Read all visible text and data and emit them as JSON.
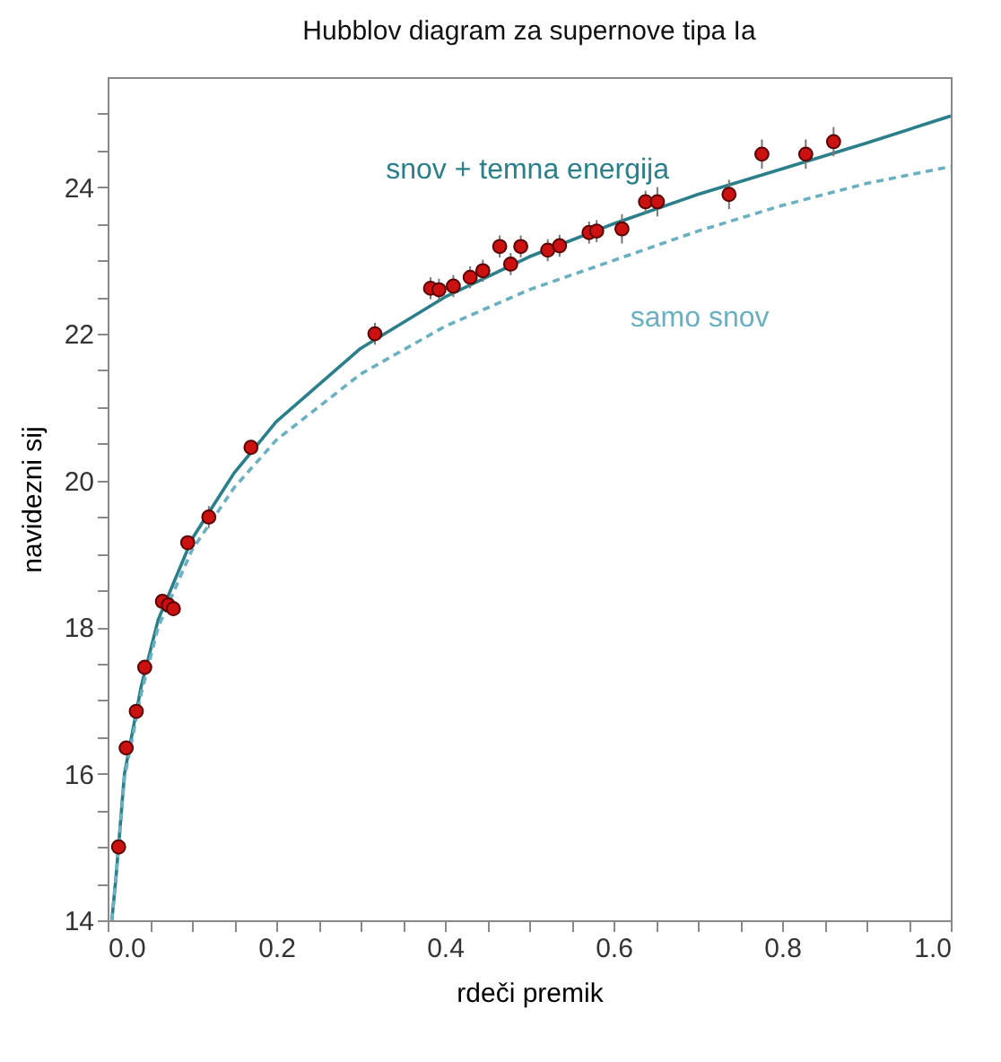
{
  "chart_data": {
    "type": "scatter",
    "title": "Hubblov diagram za supernove tipa Ia",
    "xlabel": "rdeči premik",
    "ylabel": "navidezni sij",
    "xlim": [
      0,
      1
    ],
    "ylim": [
      14,
      25.5
    ],
    "xticks": [
      {
        "value": 0,
        "label": "0.0"
      },
      {
        "value": 0.05,
        "label": null
      },
      {
        "value": 0.1,
        "label": null
      },
      {
        "value": 0.15,
        "label": null
      },
      {
        "value": 0.2,
        "label": "0.2"
      },
      {
        "value": 0.25,
        "label": null
      },
      {
        "value": 0.3,
        "label": null
      },
      {
        "value": 0.35,
        "label": null
      },
      {
        "value": 0.4,
        "label": "0.4"
      },
      {
        "value": 0.45,
        "label": null
      },
      {
        "value": 0.5,
        "label": null
      },
      {
        "value": 0.55,
        "label": null
      },
      {
        "value": 0.6,
        "label": "0.6"
      },
      {
        "value": 0.65,
        "label": null
      },
      {
        "value": 0.7,
        "label": null
      },
      {
        "value": 0.75,
        "label": null
      },
      {
        "value": 0.8,
        "label": "0.8"
      },
      {
        "value": 0.85,
        "label": null
      },
      {
        "value": 0.9,
        "label": null
      },
      {
        "value": 0.95,
        "label": null
      },
      {
        "value": 1,
        "label": "1.0"
      }
    ],
    "yticks": [
      14,
      {
        "value": 14.5,
        "label": null
      },
      {
        "value": 15,
        "label": null
      },
      {
        "value": 15.5,
        "label": null
      },
      16,
      {
        "value": 16.5,
        "label": null
      },
      {
        "value": 17,
        "label": null
      },
      {
        "value": 17.5,
        "label": null
      },
      18,
      {
        "value": 18.5,
        "label": null
      },
      {
        "value": 19,
        "label": null
      },
      {
        "value": 19.5,
        "label": null
      },
      20,
      {
        "value": 20.5,
        "label": null
      },
      {
        "value": 21,
        "label": null
      },
      {
        "value": 21.5,
        "label": null
      },
      22,
      {
        "value": 22.5,
        "label": null
      },
      {
        "value": 23,
        "label": null
      },
      {
        "value": 23.5,
        "label": null
      },
      24,
      {
        "value": 24.5,
        "label": null
      },
      {
        "value": 25,
        "label": null
      }
    ],
    "grid": false,
    "legend": false,
    "series": [
      {
        "type": "line",
        "name": "snov + temna energija",
        "color": "#2a7f8a",
        "line_style": "solid",
        "marker": "none",
        "x": [
          0.005,
          0.01,
          0.02,
          0.04,
          0.06,
          0.1,
          0.15,
          0.2,
          0.3,
          0.4,
          0.5,
          0.6,
          0.7,
          0.8,
          0.9,
          1.0
        ],
        "values": [
          14.0,
          14.6,
          16.0,
          17.2,
          18.1,
          19.2,
          20.1,
          20.8,
          21.8,
          22.5,
          23.05,
          23.5,
          23.9,
          24.25,
          24.6,
          24.97
        ]
      },
      {
        "type": "line",
        "name": "samo snov",
        "color": "#6ab0c0",
        "line_style": "dashed",
        "marker": "none",
        "x": [
          0.005,
          0.01,
          0.02,
          0.04,
          0.06,
          0.1,
          0.15,
          0.2,
          0.3,
          0.4,
          0.5,
          0.6,
          0.7,
          0.8,
          0.9,
          1.0
        ],
        "values": [
          14.0,
          14.6,
          15.95,
          17.1,
          18.0,
          19.05,
          19.9,
          20.55,
          21.45,
          22.1,
          22.6,
          23.0,
          23.4,
          23.75,
          24.05,
          24.28
        ]
      },
      {
        "type": "scatter",
        "color": "#cc1111",
        "marker": "circle",
        "x": [
          0.013,
          0.022,
          0.034,
          0.044,
          0.065,
          0.072,
          0.078,
          0.095,
          0.12,
          0.17,
          0.317,
          0.383,
          0.393,
          0.41,
          0.43,
          0.445,
          0.465,
          0.478,
          0.49,
          0.522,
          0.536,
          0.571,
          0.58,
          0.61,
          0.638,
          0.652,
          0.737,
          0.776,
          0.828,
          0.861
        ],
        "values": [
          15.0,
          16.35,
          16.85,
          17.45,
          18.35,
          18.3,
          18.25,
          19.15,
          19.5,
          20.45,
          22.0,
          22.62,
          22.6,
          22.65,
          22.77,
          22.86,
          23.19,
          22.95,
          23.19,
          23.14,
          23.2,
          23.38,
          23.4,
          23.43,
          23.8,
          23.8,
          23.9,
          24.45,
          24.45,
          24.62
        ],
        "errors": [
          0.1,
          0.1,
          0.1,
          0.1,
          0.1,
          0.1,
          0.1,
          0.1,
          0.15,
          0.1,
          0.15,
          0.15,
          0.15,
          0.15,
          0.15,
          0.15,
          0.15,
          0.15,
          0.15,
          0.15,
          0.15,
          0.15,
          0.15,
          0.2,
          0.15,
          0.2,
          0.2,
          0.2,
          0.2,
          0.2
        ]
      }
    ]
  }
}
